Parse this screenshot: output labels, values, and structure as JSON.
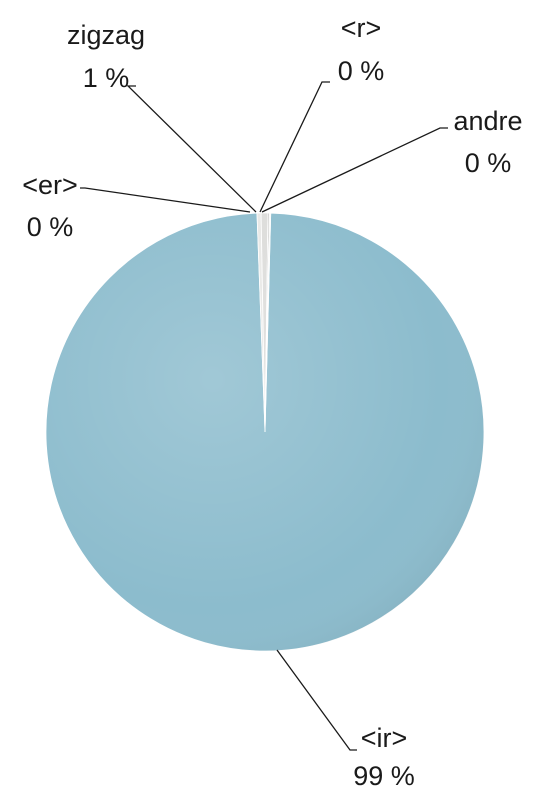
{
  "chart_data": {
    "type": "pie",
    "slices": [
      {
        "label": "<ir>",
        "value": 99,
        "value_label": "99 %",
        "color": "#8cbccd"
      },
      {
        "label": "<er>",
        "value": 0.3,
        "value_label": "0 %",
        "color": "#e8e8e6"
      },
      {
        "label": "zigzag",
        "value": 0.5,
        "value_label": "1 %",
        "color": "#dcdcda"
      },
      {
        "label": "<r>",
        "value": 0.1,
        "value_label": "0 %",
        "color": "#a9a9a7"
      },
      {
        "label": "andre",
        "value": 0.1,
        "value_label": "0 %",
        "color": "#f2f2f0"
      }
    ],
    "legend": "none",
    "data_labels": "outside with leader lines"
  }
}
